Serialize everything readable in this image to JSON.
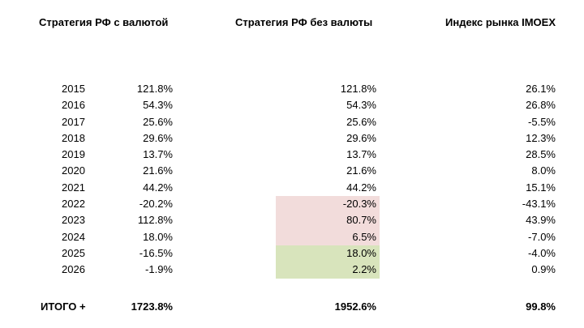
{
  "headers": {
    "with_currency": "Стратегия РФ с валютой",
    "without_currency": "Стратегия РФ без валюты",
    "index": "Индекс рынка IMOEX"
  },
  "colors": {
    "highlight_red": "#f2dcdb",
    "highlight_green": "#d8e4bc"
  },
  "rows": [
    {
      "year": "2015",
      "with_currency": "121.8%",
      "without_currency": "121.8%",
      "index": "26.1%",
      "highlight": ""
    },
    {
      "year": "2016",
      "with_currency": "54.3%",
      "without_currency": "54.3%",
      "index": "26.8%",
      "highlight": ""
    },
    {
      "year": "2017",
      "with_currency": "25.6%",
      "without_currency": "25.6%",
      "index": "-5.5%",
      "highlight": ""
    },
    {
      "year": "2018",
      "with_currency": "29.6%",
      "without_currency": "29.6%",
      "index": "12.3%",
      "highlight": ""
    },
    {
      "year": "2019",
      "with_currency": "13.7%",
      "without_currency": "13.7%",
      "index": "28.5%",
      "highlight": ""
    },
    {
      "year": "2020",
      "with_currency": "21.6%",
      "without_currency": "21.6%",
      "index": "8.0%",
      "highlight": ""
    },
    {
      "year": "2021",
      "with_currency": "44.2%",
      "without_currency": "44.2%",
      "index": "15.1%",
      "highlight": ""
    },
    {
      "year": "2022",
      "with_currency": "-20.2%",
      "without_currency": "-20.3%",
      "index": "-43.1%",
      "highlight": "red"
    },
    {
      "year": "2023",
      "with_currency": "112.8%",
      "without_currency": "80.7%",
      "index": "43.9%",
      "highlight": "red"
    },
    {
      "year": "2024",
      "with_currency": "18.0%",
      "without_currency": "6.5%",
      "index": "-7.0%",
      "highlight": "red"
    },
    {
      "year": "2025",
      "with_currency": "-16.5%",
      "without_currency": "18.0%",
      "index": "-4.0%",
      "highlight": "green"
    },
    {
      "year": "2026",
      "with_currency": "-1.9%",
      "without_currency": "2.2%",
      "index": "0.9%",
      "highlight": "green"
    }
  ],
  "total": {
    "label": "ИТОГО +",
    "with_currency": "1723.8%",
    "without_currency": "1952.6%",
    "index": "99.8%"
  }
}
